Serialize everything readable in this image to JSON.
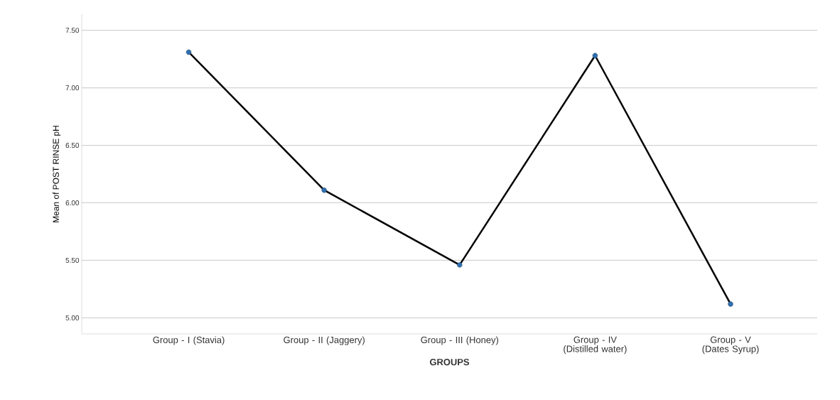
{
  "chart_data": {
    "type": "line",
    "xlabel": "GROUPS",
    "ylabel": "Mean of POST RINSE pH",
    "categories": [
      "Group - I (Stavia)",
      "Group - II (Jaggery)",
      "Group - III (Honey)",
      "Group - IV (Distilled water)",
      "Group - V (Dates Syrup)"
    ],
    "values": [
      7.31,
      6.11,
      5.46,
      7.28,
      5.12
    ],
    "color": "#000000",
    "colors": [
      "#2f6fb0",
      "#2f6fb0",
      "#2f6fb0",
      "#2f6fb0",
      "#2f6fb0"
    ],
    "marker": "circle",
    "ylim": [
      4.86,
      7.64
    ],
    "yticks": [
      {
        "value": 5.0,
        "label": "5.00"
      },
      {
        "value": 5.5,
        "label": "5.50"
      },
      {
        "value": 6.0,
        "label": "6.00"
      },
      {
        "value": 6.5,
        "label": "6.50"
      },
      {
        "value": 7.0,
        "label": "7.00"
      },
      {
        "value": 7.5,
        "label": "7.50"
      }
    ],
    "grid": "y"
  }
}
